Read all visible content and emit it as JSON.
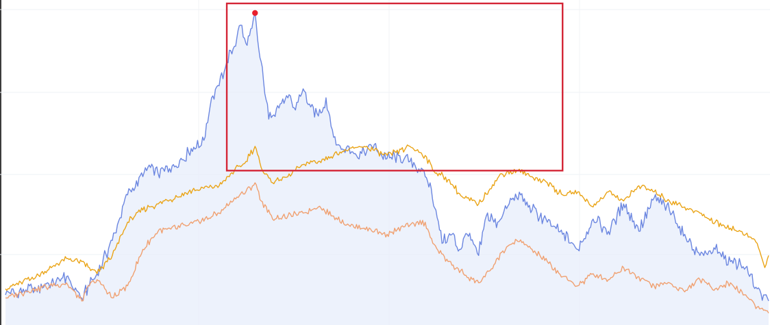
{
  "chart_data": {
    "type": "line",
    "title": "",
    "xlabel": "",
    "ylabel": "",
    "grid": true,
    "legend": "none",
    "x_range": [
      0,
      100
    ],
    "ylim": [
      0,
      100
    ],
    "colors": {
      "blue": "#6b86e0",
      "gold": "#eaa416",
      "orange": "#f0a070",
      "area_fill": "#e7edfb",
      "highlight_box": "#d42536",
      "peak_marker": "#e8202e"
    },
    "series": [
      {
        "color": "#6b86e0",
        "area": true,
        "x": [
          0,
          4,
          8,
          10,
          11,
          12,
          14,
          16,
          18,
          19,
          20,
          22,
          24,
          26,
          27,
          28,
          29,
          30,
          30.8,
          31.5,
          32.3,
          32.7,
          33.2,
          33.8,
          34.5,
          36,
          37,
          38,
          38.5,
          39,
          40,
          41,
          42,
          43,
          44,
          45,
          46,
          48,
          50,
          51,
          53,
          55,
          55.8,
          56.4,
          57.2,
          58.5,
          59.5,
          60.5,
          62,
          63,
          64.5,
          66,
          67.5,
          69,
          71,
          73,
          75,
          77,
          79,
          81,
          83,
          85,
          87,
          89,
          91,
          93,
          95,
          97,
          98.5,
          99.5,
          100
        ],
        "values": [
          7,
          9,
          13,
          6,
          10,
          14,
          25,
          40,
          46,
          49,
          47,
          50,
          54,
          58,
          72,
          76,
          84,
          89,
          96,
          90,
          95,
          100,
          88,
          78,
          65,
          70,
          72,
          68,
          73,
          75,
          69,
          66,
          72,
          59,
          55,
          56,
          53,
          56,
          52,
          53,
          51,
          46,
          42,
          35,
          24,
          27,
          22,
          27,
          20,
          33,
          31,
          37,
          40,
          35,
          31,
          27,
          22,
          32,
          28,
          37,
          28,
          39,
          35,
          27,
          20,
          22,
          18,
          16,
          9,
          7,
          5
        ]
      },
      {
        "color": "#eaa416",
        "area": false,
        "x": [
          0,
          4,
          8,
          10,
          11,
          12,
          14,
          16,
          18,
          20,
          24,
          28,
          30,
          31.5,
          32.7,
          33.5,
          35,
          37,
          39,
          41,
          43,
          45,
          47,
          50,
          53,
          55,
          56,
          58,
          60,
          62,
          63.5,
          65,
          67,
          69,
          71,
          73,
          75,
          77,
          79,
          81,
          83,
          85,
          87,
          89,
          91,
          93,
          95,
          97,
          98.5,
          99.5,
          100
        ],
        "values": [
          9,
          13,
          19,
          18,
          16,
          14,
          20,
          31,
          35,
          37,
          41,
          43,
          48,
          51,
          56,
          49,
          44,
          46,
          50,
          51,
          53,
          55,
          56,
          53,
          56,
          53,
          48,
          45,
          39,
          37,
          42,
          47,
          48,
          46,
          44,
          40,
          41,
          36,
          41,
          38,
          43,
          41,
          38,
          36,
          34,
          31,
          29,
          27,
          24,
          16,
          20
        ]
      },
      {
        "color": "#f0a070",
        "area": false,
        "x": [
          0,
          4,
          8,
          10,
          11,
          12,
          14,
          16,
          18,
          20,
          24,
          28,
          30,
          31.5,
          32.7,
          33.5,
          35,
          37,
          39,
          41,
          43,
          45,
          47,
          50,
          53,
          55,
          56,
          58,
          60,
          62,
          63.5,
          65,
          67,
          69,
          71,
          73,
          75,
          77,
          79,
          81,
          83,
          85,
          87,
          89,
          91,
          93,
          95,
          97,
          98.5,
          99.5,
          100
        ],
        "values": [
          6,
          9,
          11,
          5,
          10,
          12,
          6,
          10,
          22,
          28,
          30,
          34,
          39,
          41,
          44,
          38,
          32,
          33,
          34,
          36,
          33,
          30,
          29,
          27,
          30,
          31,
          24,
          18,
          14,
          11,
          15,
          21,
          25,
          22,
          18,
          13,
          10,
          14,
          12,
          16,
          13,
          10,
          11,
          8,
          12,
          9,
          11,
          7,
          3,
          2,
          1
        ]
      }
    ],
    "highlight_region": {
      "x_range": [
        29,
        73
      ],
      "y_range": [
        48,
        100
      ]
    },
    "peak_marker": {
      "series": 0,
      "x": 32.7,
      "y": 100
    }
  }
}
